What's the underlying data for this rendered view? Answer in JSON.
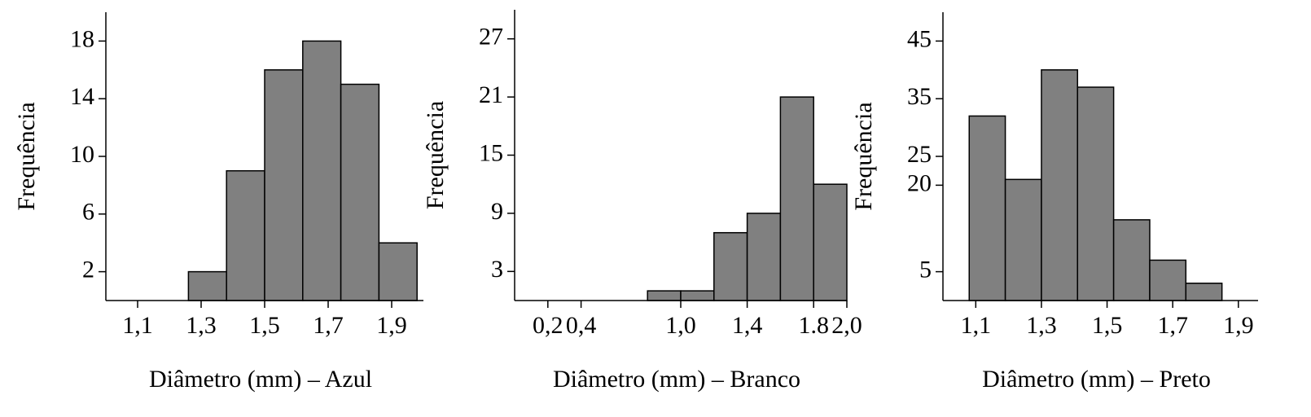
{
  "chart_data": [
    {
      "type": "histogram",
      "xlabel": "Diâmetro (mm) – Azul",
      "ylabel": "Frequência",
      "color": "#808080",
      "bins": [
        1.26,
        1.38,
        1.5,
        1.62,
        1.74,
        1.86,
        1.98
      ],
      "values": [
        2,
        9,
        16,
        18,
        15,
        4
      ],
      "xlim": [
        1.0,
        2.0
      ],
      "ylim": [
        0,
        20
      ],
      "xticks": [
        {
          "value": 1.1,
          "label": "1,1"
        },
        {
          "value": 1.3,
          "label": "1,3"
        },
        {
          "value": 1.5,
          "label": "1,5"
        },
        {
          "value": 1.7,
          "label": "1,7"
        },
        {
          "value": 1.9,
          "label": "1,9"
        }
      ],
      "yticks": [
        2,
        6,
        10,
        14,
        18
      ]
    },
    {
      "type": "histogram",
      "xlabel": "Diâmetro (mm) – Branco",
      "ylabel": "Frequência",
      "color": "#808080",
      "bins": [
        0.8,
        1.0,
        1.2,
        1.4,
        1.6,
        1.8,
        2.0
      ],
      "values": [
        1,
        1,
        7,
        9,
        21,
        12
      ],
      "xlim": [
        0,
        2.0
      ],
      "ylim": [
        0,
        30
      ],
      "xticks": [
        {
          "value": 0.2,
          "label": "0,2"
        },
        {
          "value": 0.4,
          "label": "0,4"
        },
        {
          "value": 1.0,
          "label": "1,0"
        },
        {
          "value": 1.4,
          "label": "1,4"
        },
        1.8,
        {
          "value": 2.0,
          "label": "2,0"
        }
      ],
      "yticks": [
        3,
        9,
        15,
        21,
        27
      ]
    },
    {
      "type": "histogram",
      "xlabel": "Diâmetro (mm) – Preto",
      "ylabel": "Frequência",
      "color": "#808080",
      "bins": [
        1.08,
        1.19,
        1.3,
        1.41,
        1.52,
        1.63,
        1.74,
        1.85
      ],
      "values": [
        32,
        21,
        40,
        37,
        14,
        7,
        3
      ],
      "xlim": [
        1.0,
        1.96
      ],
      "ylim": [
        0,
        50
      ],
      "xticks": [
        {
          "value": 1.1,
          "label": "1,1"
        },
        {
          "value": 1.3,
          "label": "1,3"
        },
        {
          "value": 1.5,
          "label": "1,5"
        },
        {
          "value": 1.7,
          "label": "1,7"
        },
        {
          "value": 1.9,
          "label": "1,9"
        }
      ],
      "yticks": [
        5,
        20,
        25,
        35,
        45
      ]
    }
  ]
}
